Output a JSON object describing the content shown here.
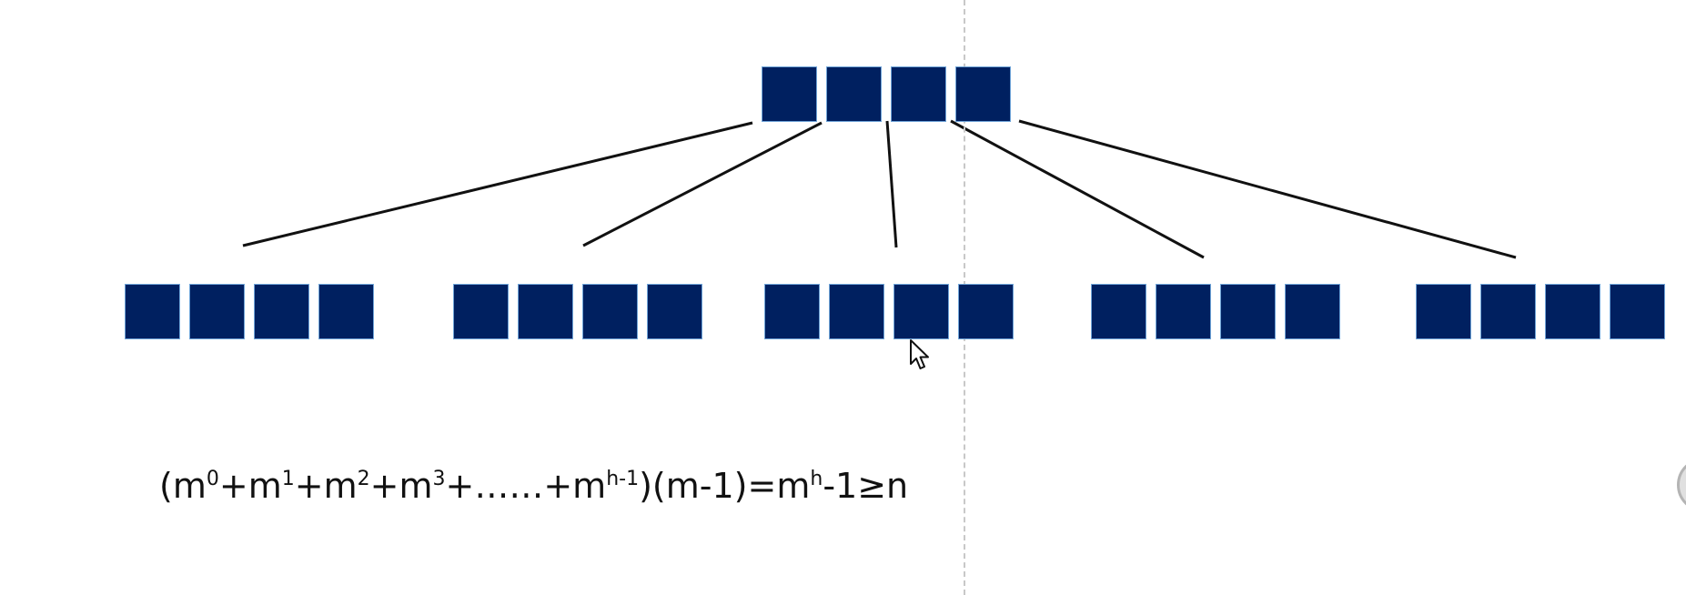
{
  "diagram": {
    "root": {
      "keys": 4
    },
    "children": [
      {
        "keys": 4
      },
      {
        "keys": 4
      },
      {
        "keys": 4
      },
      {
        "keys": 4
      },
      {
        "keys": 4
      }
    ],
    "node_color": "#002060",
    "node_border_color": "#6fa4d8",
    "link_color": "#111111",
    "divider_color": "#c8c8c8"
  },
  "formula": {
    "open_paren": "(",
    "terms": [
      {
        "base": "m",
        "exp": "0",
        "op": "+"
      },
      {
        "base": "m",
        "exp": "1",
        "op": "+"
      },
      {
        "base": "m",
        "exp": "2",
        "op": "+"
      },
      {
        "base": "m",
        "exp": "3",
        "op": "+……+"
      },
      {
        "base": "m",
        "exp": "h-1",
        "op": ""
      }
    ],
    "close_and_factor": ")(m-1)=",
    "rhs_base": "m",
    "rhs_exp": "h",
    "rhs_tail": "-1≥n"
  },
  "icons": {
    "cursor": "mouse-pointer-icon"
  }
}
